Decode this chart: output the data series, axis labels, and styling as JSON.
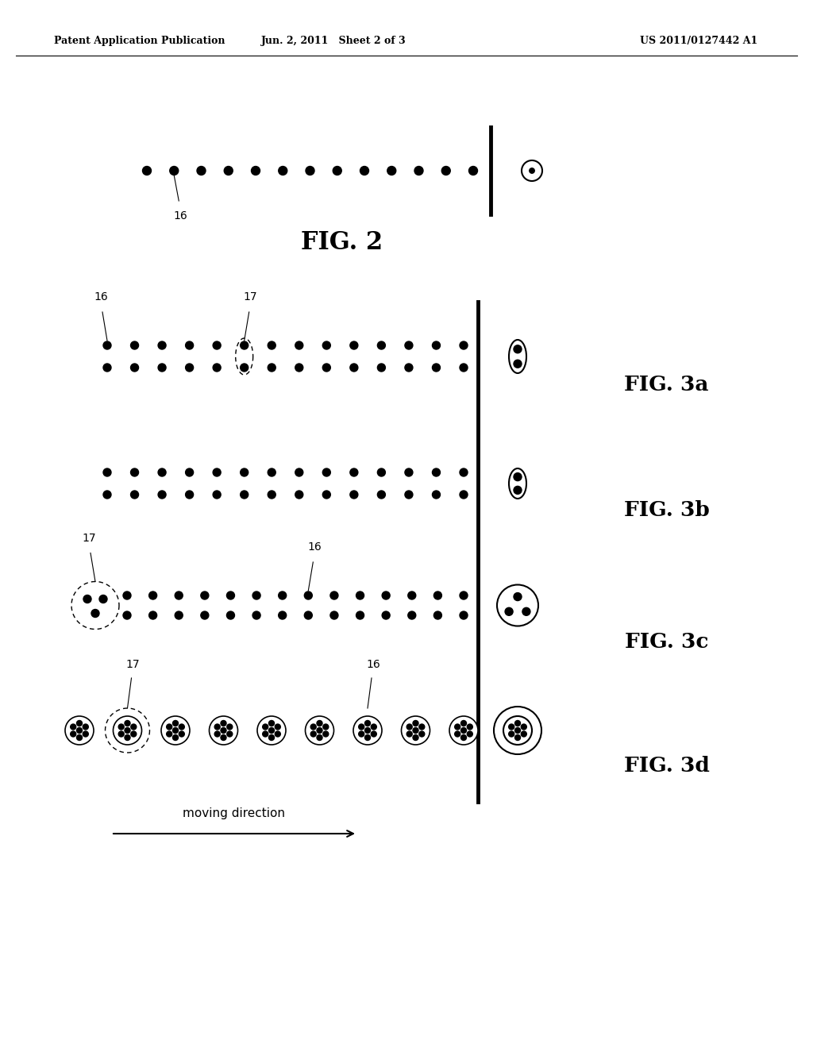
{
  "background_color": "#ffffff",
  "header_left": "Patent Application Publication",
  "header_center": "Jun. 2, 2011   Sheet 2 of 3",
  "header_right": "US 2011/0127442 A1",
  "fig2_label": "FIG. 2",
  "fig3a_label": "FIG. 3a",
  "fig3b_label": "FIG. 3b",
  "fig3c_label": "FIG. 3c",
  "fig3d_label": "FIG. 3d",
  "moving_direction_label": "moving direction",
  "label_16": "16",
  "label_17": "17",
  "dot_color": "#000000"
}
